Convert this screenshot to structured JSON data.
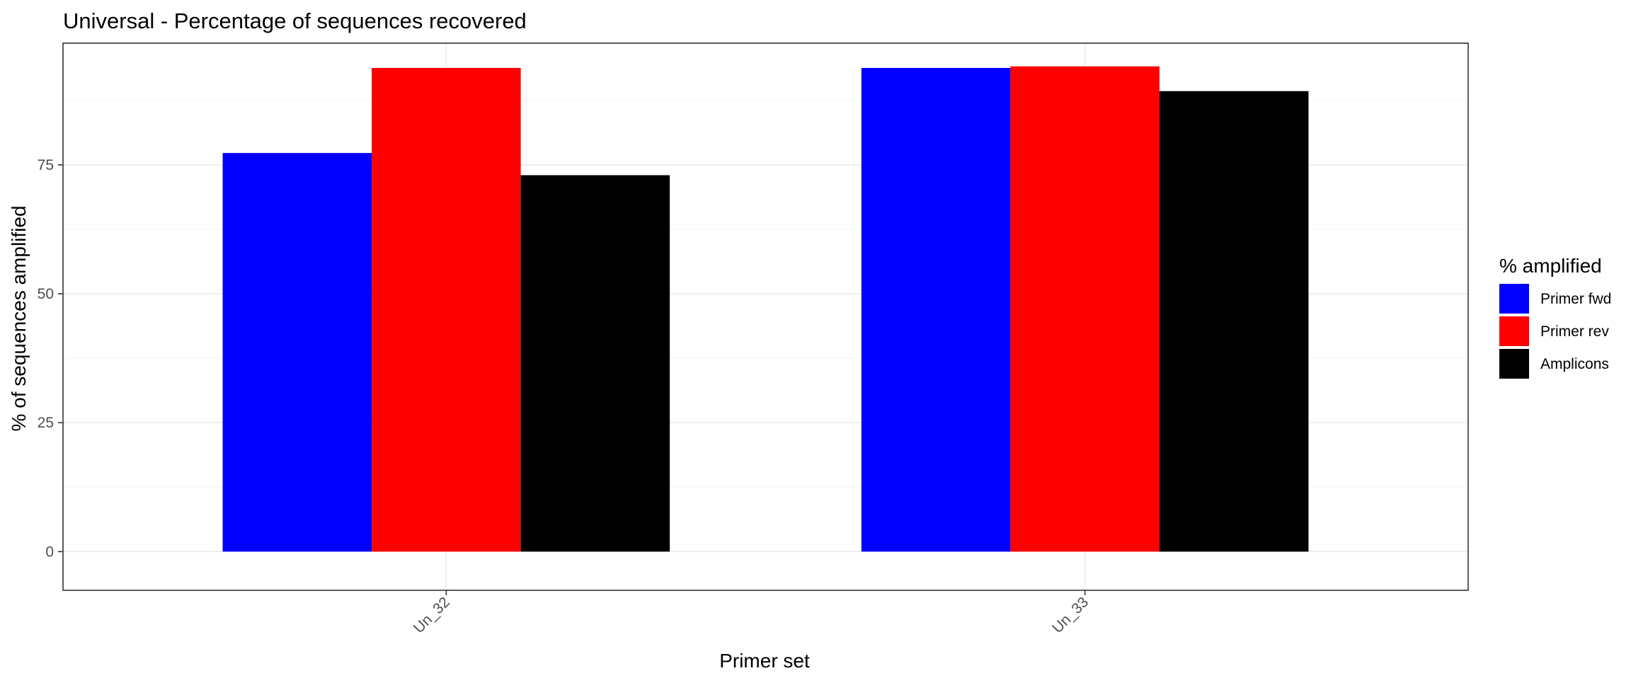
{
  "chart_data": {
    "type": "bar",
    "title": "Universal - Percentage of sequences recovered",
    "xlabel": "Primer set",
    "ylabel": "% of sequences amplified",
    "categories": [
      "Un_32",
      "Un_33"
    ],
    "series": [
      {
        "name": "Primer fwd",
        "color": "#0000ff",
        "values": [
          77.3,
          93.8
        ]
      },
      {
        "name": "Primer rev",
        "color": "#ff0000",
        "values": [
          93.8,
          94.1
        ]
      },
      {
        "name": "Amplicons",
        "color": "#000000",
        "values": [
          73.0,
          89.3
        ]
      }
    ],
    "ylim": [
      -7.5,
      98.6
    ],
    "yticks": [
      0,
      25,
      50,
      75
    ],
    "ytick_labels": [
      "0",
      "25",
      "50",
      "75"
    ],
    "grid": true,
    "legend": {
      "title": "% amplified",
      "position": "right"
    }
  }
}
